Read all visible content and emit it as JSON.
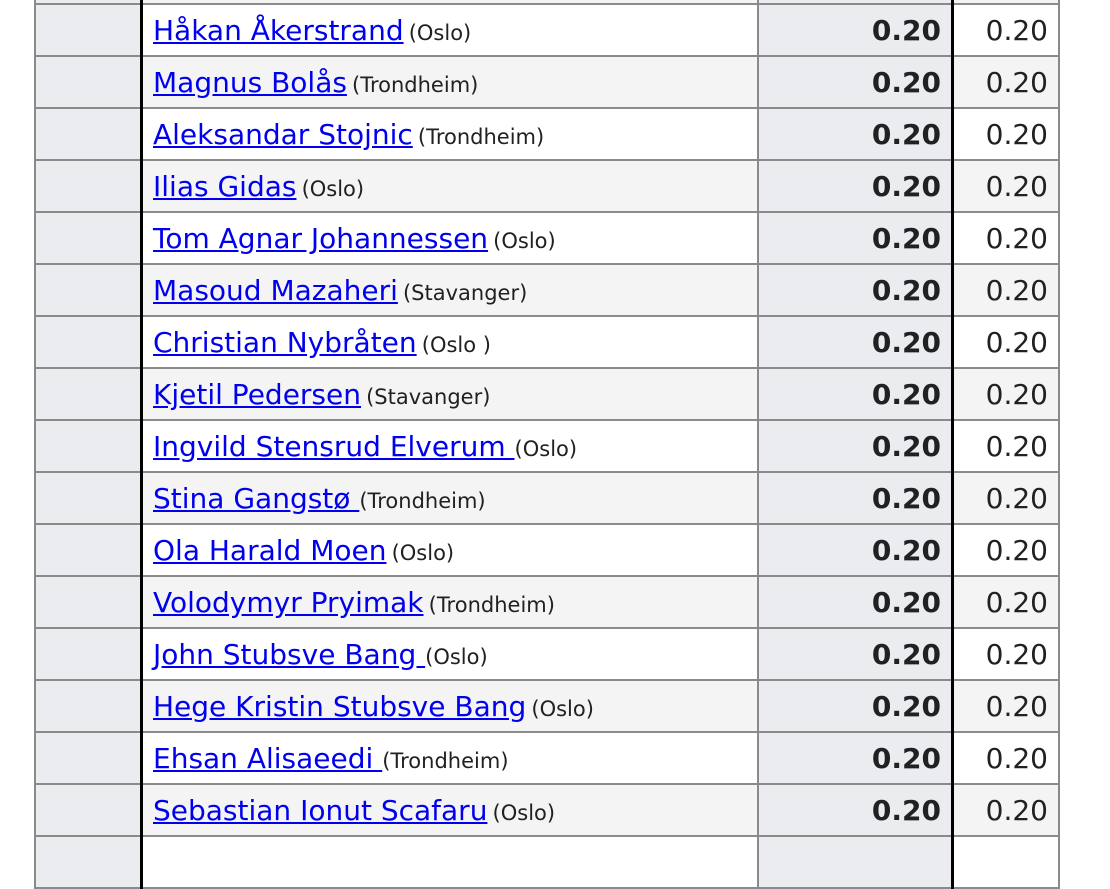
{
  "rows": [
    {
      "name": "",
      "city": "",
      "score": "",
      "value": ""
    },
    {
      "name": "Håkan Åkerstrand",
      "city": "(Oslo)",
      "score": "0.20",
      "value": "0.20"
    },
    {
      "name": "Magnus Bolås",
      "city": "(Trondheim)",
      "score": "0.20",
      "value": "0.20"
    },
    {
      "name": "Aleksandar Stojnic",
      "city": "(Trondheim)",
      "score": "0.20",
      "value": "0.20"
    },
    {
      "name": "Ilias Gidas",
      "city": "(Oslo)",
      "score": "0.20",
      "value": "0.20"
    },
    {
      "name": "Tom Agnar Johannessen",
      "city": "(Oslo)",
      "score": "0.20",
      "value": "0.20"
    },
    {
      "name": "Masoud Mazaheri",
      "city": "(Stavanger)",
      "score": "0.20",
      "value": "0.20"
    },
    {
      "name": "Christian Nybråten",
      "city": "(Oslo )",
      "score": "0.20",
      "value": "0.20"
    },
    {
      "name": "Kjetil Pedersen",
      "city": "(Stavanger)",
      "score": "0.20",
      "value": "0.20"
    },
    {
      "name": "Ingvild Stensrud Elverum ",
      "city": "(Oslo)",
      "score": "0.20",
      "value": "0.20"
    },
    {
      "name": "Stina Gangstø ",
      "city": "(Trondheim)",
      "score": "0.20",
      "value": "0.20"
    },
    {
      "name": "Ola Harald Moen",
      "city": "(Oslo)",
      "score": "0.20",
      "value": "0.20"
    },
    {
      "name": "Volodymyr Pryimak",
      "city": "(Trondheim)",
      "score": "0.20",
      "value": "0.20"
    },
    {
      "name": "John Stubsve Bang ",
      "city": "(Oslo)",
      "score": "0.20",
      "value": "0.20"
    },
    {
      "name": "Hege Kristin Stubsve Bang",
      "city": "(Oslo)",
      "score": "0.20",
      "value": "0.20"
    },
    {
      "name": "Ehsan Alisaeedi ",
      "city": "(Trondheim)",
      "score": "0.20",
      "value": "0.20"
    },
    {
      "name": "Sebastian Ionut Scafaru",
      "city": "(Oslo)",
      "score": "0.20",
      "value": "0.20"
    },
    {
      "name": "",
      "city": "",
      "score": "",
      "value": ""
    }
  ]
}
